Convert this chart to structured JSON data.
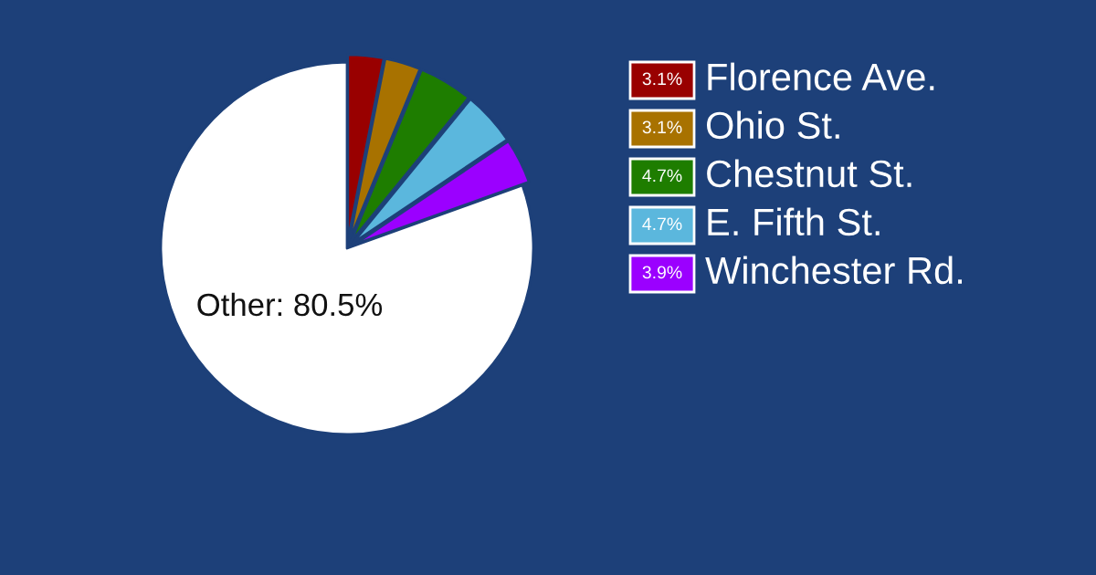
{
  "chart_data": {
    "type": "pie",
    "categories": [
      "Florence Ave.",
      "Ohio St.",
      "Chestnut St.",
      "E. Fifth St.",
      "Winchester Rd.",
      "Other"
    ],
    "values": [
      3.1,
      3.1,
      4.7,
      4.7,
      3.9,
      80.5
    ],
    "colors": [
      "#990000",
      "#a87200",
      "#1e7d00",
      "#5bb7dd",
      "#9b00ff",
      "#ffffff"
    ],
    "value_labels": [
      "3.1%",
      "3.1%",
      "4.7%",
      "4.7%",
      "3.9%",
      "80.5%"
    ],
    "legend": "right"
  }
}
